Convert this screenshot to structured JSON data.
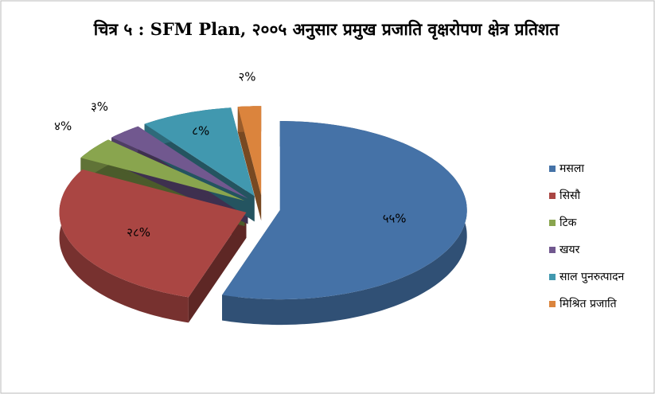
{
  "chart_data": {
    "type": "pie",
    "title": "चित्र ५ : SFM Plan, २००५ अनुसार  प्रमुख प्रजाति वृक्षरोपण क्षेत्र प्रतिशत",
    "categories": [
      "मसला",
      "सिसौ",
      "टिक",
      "खयर",
      "साल पुनरुत्पादन",
      "मिश्रित प्रजाति"
    ],
    "values": [
      55,
      28,
      4,
      3,
      8,
      2
    ],
    "value_labels": [
      "५५%",
      "२८%",
      "४%",
      "३%",
      "८%",
      "२%"
    ],
    "colors": [
      "#4572a7",
      "#aa4643",
      "#89a54e",
      "#71588f",
      "#4198af",
      "#db843d"
    ],
    "legend": "right"
  }
}
